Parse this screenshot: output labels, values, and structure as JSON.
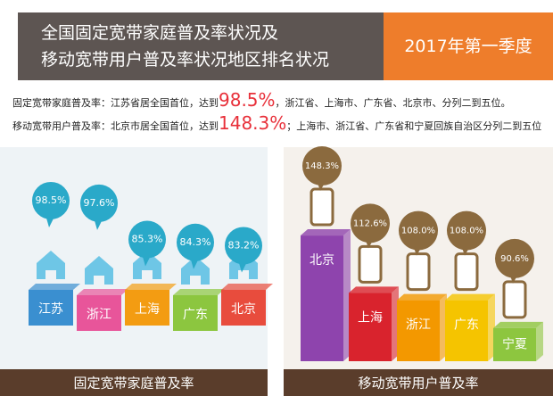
{
  "header": {
    "title_lines": [
      "全国固定宽带家庭普及率状况及",
      "移动宽带用户普及率状况地区排名状况"
    ],
    "period": "2017年第一季度"
  },
  "notes": [
    {
      "prefix": "固定宽带家庭普及率：江苏省居全国首位，达到",
      "highlight": "98.5%",
      "suffix": "，浙江省、上海市、广东省、北京市、分列二到五位。"
    },
    {
      "prefix": "移动宽带用户普及率：北京市居全国首位，达到",
      "highlight": "148.3%",
      "suffix": "；上海市、浙江省、广东省和宁夏回族自治区分列二到五位"
    }
  ],
  "chart_data": [
    {
      "type": "bar",
      "title": "固定宽带家庭普及率",
      "categories": [
        "江苏",
        "浙江",
        "上海",
        "广东",
        "北京"
      ],
      "values": [
        98.5,
        97.6,
        85.3,
        84.3,
        83.2
      ],
      "value_labels": [
        "98.5%",
        "97.6%",
        "85.3%",
        "84.3%",
        "83.2%"
      ],
      "colors": [
        "#3a8fd0",
        "#e8559a",
        "#f39c12",
        "#8cc63f",
        "#e84c3d"
      ],
      "bubble_color": "#2aa9c9"
    },
    {
      "type": "bar",
      "title": "移动宽带用户普及率",
      "categories": [
        "北京",
        "上海",
        "浙江",
        "广东",
        "宁夏"
      ],
      "values": [
        148.3,
        112.6,
        108.0,
        108.0,
        90.6
      ],
      "value_labels": [
        "148.3%",
        "112.6%",
        "108.0%",
        "108.0%",
        "90.6%"
      ],
      "colors": [
        "#8e44ad",
        "#d9232d",
        "#f39800",
        "#f5c400",
        "#8dc63f"
      ],
      "bubble_color": "#8b6a3e"
    }
  ]
}
